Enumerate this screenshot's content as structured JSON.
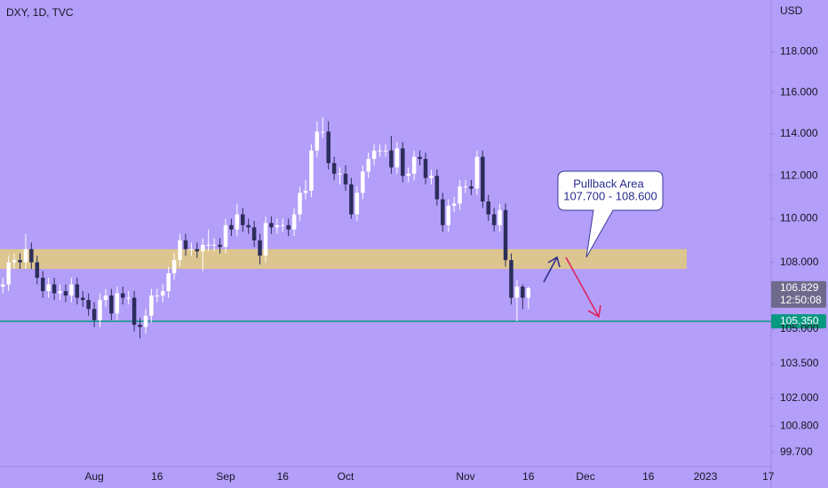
{
  "chart_data": {
    "type": "candlestick",
    "title": "DXY, 1D, TVC",
    "currency": "USD",
    "log_scale": true,
    "background": "#b39ef9",
    "up_color": "#ffffff",
    "down_color": "#2b2d5b",
    "ylim": [
      99.1,
      120.6
    ],
    "yticks": [
      {
        "value": 118,
        "label": "118.000"
      },
      {
        "value": 116,
        "label": "116.000"
      },
      {
        "value": 114,
        "label": "114.000"
      },
      {
        "value": 112,
        "label": "112.000"
      },
      {
        "value": 110,
        "label": "110.000"
      },
      {
        "value": 108,
        "label": "108.000"
      },
      {
        "value": 105,
        "label": "105.000"
      },
      {
        "value": 103.5,
        "label": "103.500"
      },
      {
        "value": 102,
        "label": "102.000"
      },
      {
        "value": 100.8,
        "label": "100.800"
      },
      {
        "value": 99.7,
        "label": "99.700"
      }
    ],
    "categories": [
      null,
      null,
      null,
      null,
      null,
      null,
      null,
      null,
      null,
      null,
      null,
      null,
      null,
      null,
      null,
      null,
      "Aug",
      null,
      null,
      null,
      null,
      null,
      null,
      null,
      null,
      null,
      null,
      "16",
      null,
      null,
      null,
      null,
      null,
      null,
      null,
      null,
      null,
      null,
      null,
      "Sep",
      null,
      null,
      null,
      null,
      null,
      null,
      null,
      null,
      null,
      "16",
      null,
      null,
      null,
      null,
      null,
      null,
      null,
      null,
      null,
      null,
      "Oct",
      null,
      null,
      null,
      null,
      null,
      null,
      null,
      null,
      null,
      null,
      null,
      null,
      null,
      null,
      null,
      null,
      null,
      null,
      null,
      null,
      "Nov",
      null,
      null,
      null,
      null,
      null,
      null,
      null,
      null,
      null,
      null,
      "16",
      null,
      null,
      null,
      null,
      null,
      null,
      null,
      null,
      null,
      "Dec",
      null,
      null,
      null,
      null,
      null,
      null,
      null,
      null,
      null,
      null,
      "16",
      null,
      null,
      null,
      null,
      null,
      null,
      null,
      null,
      null,
      "2023",
      null,
      null,
      null,
      null,
      null,
      null,
      null,
      null,
      null,
      null,
      "17"
    ],
    "open": [
      106.9,
      107.0,
      108.0,
      108.1,
      108.0,
      108.6,
      108.0,
      107.3,
      106.7,
      107.0,
      106.6,
      106.7,
      106.5,
      107.0,
      106.4,
      106.3,
      105.9,
      105.4,
      106.3,
      106.5,
      105.7,
      106.6,
      106.4,
      106.4,
      105.2,
      105.1,
      105.6,
      106.5,
      106.5,
      106.7,
      107.5,
      108.1,
      109.0,
      108.6,
      108.6,
      108.5,
      108.8,
      108.8,
      108.8,
      108.7,
      109.7,
      109.5,
      110.2,
      109.7,
      109.6,
      109.0,
      108.3,
      109.8,
      109.6,
      109.7,
      109.7,
      109.5,
      110.2,
      111.2,
      111.3,
      113.2,
      114.1,
      114.1,
      112.6,
      112.1,
      112.1,
      111.6,
      110.2,
      111.2,
      112.2,
      112.8,
      113.2,
      113.2,
      113.2,
      112.4,
      113.3,
      112.0,
      112.1,
      112.9,
      112.8,
      111.9,
      112.0,
      110.9,
      109.7,
      110.6,
      110.7,
      111.5,
      111.5,
      111.4,
      112.9,
      110.8,
      110.2,
      109.7,
      110.4,
      108.1,
      106.4,
      106.9,
      106.4,
      null,
      null,
      null,
      null,
      null,
      null,
      null,
      null,
      null,
      null,
      null,
      null,
      null,
      null,
      null,
      null,
      null,
      null,
      null,
      null,
      null,
      null,
      null,
      null,
      null,
      null,
      null,
      null,
      null,
      null,
      null,
      null,
      null,
      null,
      null,
      null,
      null,
      null,
      null,
      null,
      null,
      null
    ],
    "high": [
      107.3,
      108.3,
      108.4,
      108.4,
      109.3,
      108.9,
      108.3,
      107.6,
      107.3,
      107.3,
      107.0,
      107.0,
      107.3,
      107.3,
      106.7,
      106.6,
      106.2,
      106.6,
      106.8,
      106.8,
      106.9,
      106.9,
      106.7,
      106.7,
      105.5,
      105.9,
      106.8,
      106.8,
      107.0,
      107.8,
      108.4,
      109.3,
      109.3,
      108.9,
      108.9,
      109.1,
      109.5,
      109.1,
      109.1,
      110.0,
      110.0,
      110.7,
      110.5,
      110.0,
      109.9,
      109.3,
      110.1,
      110.1,
      110.0,
      110.0,
      110.0,
      110.5,
      111.5,
      111.8,
      113.5,
      114.6,
      114.8,
      114.6,
      112.9,
      112.4,
      112.5,
      111.9,
      111.5,
      112.5,
      113.1,
      113.5,
      113.5,
      113.5,
      113.9,
      113.6,
      113.6,
      112.4,
      113.2,
      113.2,
      113.1,
      112.3,
      112.3,
      111.2,
      110.9,
      111.0,
      111.8,
      111.8,
      111.8,
      113.2,
      113.2,
      111.1,
      110.5,
      110.7,
      110.7,
      108.4,
      107.2,
      107.0,
      106.9,
      null,
      null,
      null,
      null,
      null,
      null,
      null,
      null,
      null,
      null,
      null,
      null,
      null,
      null,
      null,
      null,
      null,
      null,
      null,
      null,
      null,
      null,
      null,
      null,
      null,
      null,
      null,
      null,
      null,
      null,
      null,
      null,
      null,
      null,
      null,
      null,
      null,
      null,
      null,
      null,
      null,
      null
    ],
    "low": [
      106.6,
      106.7,
      107.7,
      107.7,
      107.7,
      107.7,
      107.0,
      106.4,
      106.4,
      106.3,
      106.3,
      106.2,
      106.2,
      106.1,
      106.0,
      105.6,
      105.1,
      105.1,
      106.0,
      105.4,
      105.4,
      106.1,
      106.1,
      104.9,
      104.6,
      104.8,
      105.3,
      106.2,
      106.2,
      106.4,
      107.2,
      107.8,
      108.3,
      108.3,
      108.2,
      107.6,
      108.5,
      108.5,
      108.4,
      108.4,
      109.2,
      109.2,
      109.4,
      109.3,
      108.7,
      107.9,
      108.0,
      109.3,
      109.3,
      109.4,
      109.2,
      109.2,
      109.9,
      110.9,
      111.0,
      112.9,
      113.8,
      112.3,
      111.8,
      111.6,
      111.3,
      110.0,
      109.9,
      110.9,
      111.9,
      112.5,
      112.9,
      112.9,
      112.1,
      112.1,
      111.7,
      111.7,
      111.8,
      112.5,
      111.6,
      111.6,
      110.6,
      109.4,
      109.4,
      110.3,
      110.4,
      111.2,
      111.1,
      111.1,
      110.5,
      109.9,
      109.4,
      109.4,
      107.8,
      106.1,
      105.35,
      105.9,
      105.9,
      null,
      null,
      null,
      null,
      null,
      null,
      null,
      null,
      null,
      null,
      null,
      null,
      null,
      null,
      null,
      null,
      null,
      null,
      null,
      null,
      null,
      null,
      null,
      null,
      null,
      null,
      null,
      null,
      null,
      null,
      null,
      null,
      null,
      null,
      null,
      null,
      null,
      null,
      null,
      null,
      null,
      null
    ],
    "close": [
      107.0,
      108.0,
      108.1,
      108.0,
      108.6,
      108.0,
      107.3,
      106.7,
      107.0,
      106.6,
      106.7,
      106.5,
      107.0,
      106.4,
      106.3,
      105.9,
      105.4,
      106.3,
      106.5,
      105.7,
      106.6,
      106.4,
      106.4,
      105.2,
      105.1,
      105.6,
      106.5,
      106.5,
      106.7,
      107.5,
      108.1,
      109.0,
      108.6,
      108.6,
      108.5,
      108.8,
      108.8,
      108.8,
      108.7,
      109.7,
      109.5,
      110.2,
      109.7,
      109.6,
      109.0,
      108.3,
      109.8,
      109.6,
      109.7,
      109.7,
      109.5,
      110.2,
      111.2,
      111.3,
      113.2,
      114.1,
      114.1,
      112.6,
      112.1,
      112.1,
      111.6,
      110.2,
      111.2,
      112.2,
      112.8,
      113.2,
      113.2,
      113.2,
      112.4,
      113.3,
      112.0,
      112.1,
      112.9,
      112.8,
      111.9,
      112.0,
      110.9,
      109.7,
      110.6,
      110.7,
      111.5,
      111.5,
      111.4,
      112.9,
      110.8,
      110.2,
      109.7,
      110.4,
      108.1,
      106.4,
      106.9,
      106.4,
      106.829,
      null,
      null,
      null,
      null,
      null,
      null,
      null,
      null,
      null,
      null,
      null,
      null,
      null,
      null,
      null,
      null,
      null,
      null,
      null,
      null,
      null,
      null,
      null,
      null,
      null,
      null,
      null,
      null,
      null,
      null,
      null,
      null,
      null,
      null,
      null,
      null,
      null,
      null,
      null,
      null,
      null,
      null
    ],
    "countdown": "12:50:08",
    "zone": {
      "range": [
        107.7,
        108.6
      ],
      "color": "#dcc58f"
    },
    "support": {
      "value": 105.35,
      "label": "105.350",
      "color": "#089981"
    },
    "annotation": {
      "title": "Pullback Area",
      "text": "107.700 - 108.600"
    }
  }
}
